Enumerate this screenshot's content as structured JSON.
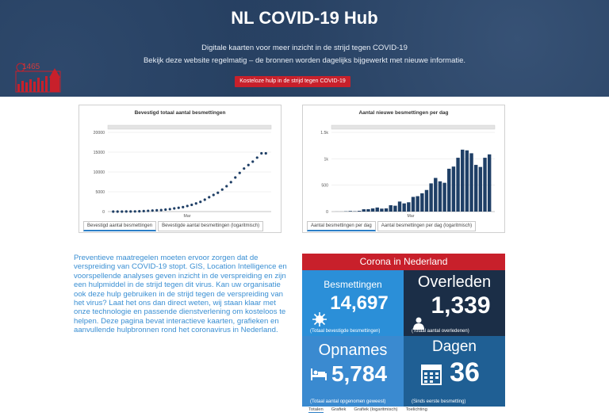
{
  "hero": {
    "title": "NL COVID-19 Hub",
    "subtitle_line1": "Digitale kaarten voor meer inzicht in de strijd tegen COVID-19",
    "subtitle_line2": "Bekijk deze website regelmatig – de bronnen worden dagelijks bijgewerkt met nieuwe informatie.",
    "button_label": "Kosteloze hulp in de strijd tegen COVID-19",
    "logo_number": "1465",
    "colors": {
      "background": "#243d5e",
      "button": "#c8202b"
    }
  },
  "chart_data": [
    {
      "type": "scatter",
      "title": "Bevestigd totaal aantal besmettingen",
      "xlabel": "",
      "ylabel": "",
      "x_tick_labels": [
        "Mar"
      ],
      "y_tick_labels": [
        "0",
        "5000",
        "10000",
        "15000",
        "20000"
      ],
      "ylim": [
        0,
        20000
      ],
      "x": [
        1,
        2,
        3,
        4,
        5,
        6,
        7,
        8,
        9,
        10,
        11,
        12,
        13,
        14,
        15,
        16,
        17,
        18,
        19,
        20,
        21,
        22,
        23,
        24,
        25,
        26,
        27,
        28,
        29,
        30,
        31,
        32,
        33,
        34,
        35,
        36
      ],
      "values": [
        1,
        2,
        7,
        18,
        24,
        38,
        82,
        128,
        188,
        265,
        321,
        382,
        503,
        614,
        804,
        959,
        1135,
        1413,
        1705,
        2051,
        2460,
        2994,
        3631,
        4204,
        4749,
        5560,
        6412,
        7431,
        8603,
        9762,
        10866,
        11750,
        12595,
        13614,
        14697,
        14697
      ],
      "grid": true,
      "color": "#1f3f66"
    },
    {
      "type": "bar",
      "title": "Aantal nieuwe besmettingen per dag",
      "xlabel": "",
      "ylabel": "",
      "x_tick_labels": [
        "Mar"
      ],
      "y_tick_labels": [
        "0",
        "500",
        "1k",
        "1.5k"
      ],
      "ylim": [
        0,
        1500
      ],
      "values": [
        1,
        1,
        5,
        11,
        6,
        14,
        44,
        46,
        60,
        77,
        56,
        61,
        121,
        111,
        190,
        155,
        176,
        278,
        292,
        346,
        409,
        534,
        637,
        573,
        545,
        811,
        852,
        1019,
        1172,
        1159,
        1104,
        884,
        845,
        1019,
        1083
      ],
      "grid": true,
      "color": "#1f3f66"
    }
  ],
  "chart_tabs": {
    "left": [
      "Bevestigd aantal besmettingen",
      "Bevestigde aantal besmettingen (logaritmisch)"
    ],
    "right": [
      "Aantal besmettingen per dag",
      "Aantal besmettingen per dag (logaritmisch)"
    ]
  },
  "body_text": "Preventieve maatregelen moeten ervoor zorgen dat de verspreiding van COVID-19 stopt. GIS, Location Intelligence en voorspellende analyses geven inzicht in de verspreiding en zijn een hulpmiddel in de strijd tegen dit virus. Kan uw organisatie ook deze hulp gebruiken in de strijd tegen de verspreiding van het virus? Laat het ons dan direct weten, wij staan klaar met onze technologie en passende dienstverlening om kosteloos te helpen. Deze pagina bevat interactieve kaarten, grafieken en aanvullende hulpbronnen rond het coronavirus in Nederland.",
  "dashboard": {
    "header": "Corona in Nederland",
    "besmettingen": {
      "label": "Besmettingen",
      "value": "14,697",
      "sub": "(Totaal bevestigde besmettingen)",
      "icon": "virus-icon"
    },
    "overleden": {
      "label": "Overleden",
      "value": "1,339",
      "sub": "(Totaal aantal overledenen)",
      "icon": "person-icon"
    },
    "opnames": {
      "label": "Opnames",
      "value": "5,784",
      "sub": "(Totaal aantal opgenomen geweest)",
      "icon": "bed-icon"
    },
    "dagen": {
      "label": "Dagen",
      "value": "36",
      "sub": "(Sinds eerste besmetting)",
      "icon": "calendar-icon"
    },
    "tabs": [
      "Totalen",
      "Grafiek",
      "Grafiek (logaritmisch)",
      "Toelichting"
    ],
    "colors": {
      "header": "#c8202b",
      "besmettingen": "#2b8fd8",
      "overleden": "#1b2e47",
      "opnames": "#3a8ad0",
      "dagen": "#1f5f94"
    }
  }
}
